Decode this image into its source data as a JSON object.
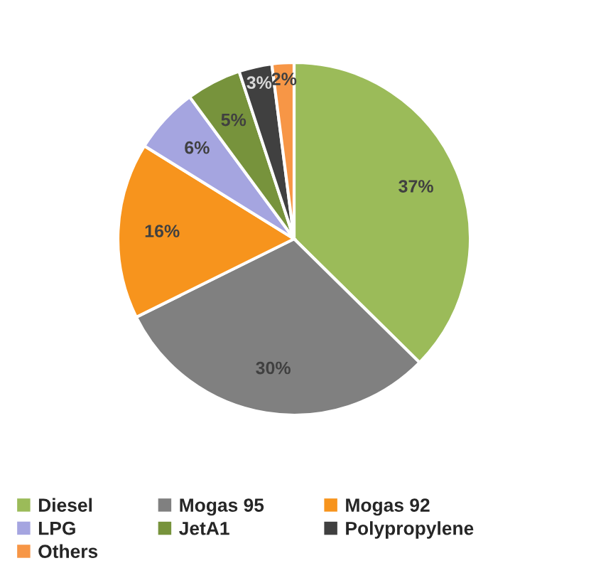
{
  "chart_data": {
    "type": "pie",
    "categories": [
      "Diesel",
      "Mogas 95",
      "Mogas 92",
      "LPG",
      "JetA1",
      "Polypropylene",
      "Others"
    ],
    "values": [
      37,
      30,
      16,
      6,
      5,
      3,
      2
    ],
    "colors": [
      "#9bbb59",
      "#808080",
      "#f7941d",
      "#a5a5e0",
      "#77933c",
      "#404040",
      "#f79646"
    ],
    "value_labels": [
      "37%",
      "30%",
      "16%",
      "6%",
      "5%",
      "3%",
      "2%"
    ],
    "legend": "bottom"
  }
}
